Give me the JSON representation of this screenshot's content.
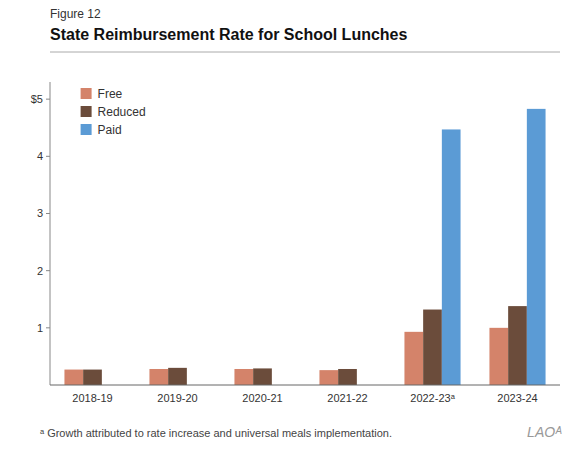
{
  "chart_data": {
    "type": "bar",
    "title": "State Reimbursement Rate for School Lunches",
    "annotations": [
      "Figure 12",
      "ᵃ Growth attributed to rate increase and universal meals implementation.",
      "LAOᴬ"
    ],
    "categories": [
      "2018-19",
      "2019-20",
      "2020-21",
      "2021-22",
      "2022-23ᵃ",
      "2023-24"
    ],
    "series": [
      {
        "name": "Free",
        "color": "#d4836a",
        "values": [
          0.27,
          0.28,
          0.28,
          0.26,
          0.93,
          1.0
        ]
      },
      {
        "name": "Reduced",
        "color": "#6b4c3b",
        "values": [
          0.27,
          0.3,
          0.29,
          0.28,
          1.32,
          1.38
        ]
      },
      {
        "name": "Paid",
        "color": "#5b9bd5",
        "values": [
          0.0,
          0.0,
          0.0,
          0.0,
          4.47,
          4.83
        ]
      }
    ],
    "ylim": [
      0,
      5.3
    ],
    "yticks": [
      1,
      2,
      3,
      4,
      {
        "value": 5,
        "label": "$5"
      }
    ],
    "grid": false,
    "legend": "upper left"
  }
}
